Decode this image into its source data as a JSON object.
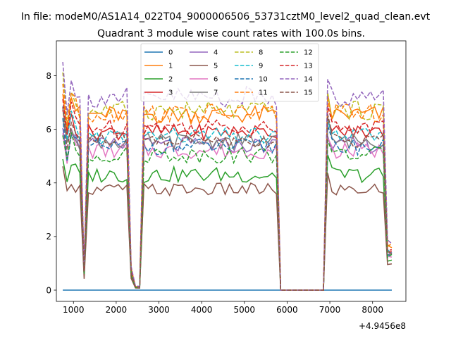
{
  "figure": {
    "suptitle": "In file: modeM0/AS1A14_022T04_9000006506_53731cztM0_level2_quad_clean.evt"
  },
  "chart_data": {
    "type": "line",
    "title": "Quadrant 3 module wise count rates with 100.0s bins.",
    "xlabel": "",
    "ylabel": "",
    "x_offset_label": "+4.9456e8",
    "xlim": [
      600,
      8780
    ],
    "ylim": [
      -0.42,
      9.3
    ],
    "xticks": [
      1000,
      2000,
      3000,
      4000,
      5000,
      6000,
      7000,
      8000
    ],
    "yticks": [
      0,
      2,
      4,
      6,
      8
    ],
    "grid": false,
    "legend": {
      "placement": "top-center",
      "columns": 4
    },
    "x_segments": [
      {
        "start": 750,
        "end": 2450,
        "step": 100
      },
      {
        "start": 2550,
        "end": 5750,
        "step": 100
      },
      {
        "start": 5850,
        "end": 6850,
        "step": 100
      },
      {
        "start": 6950,
        "end": 8450,
        "step": 100
      }
    ],
    "series": [
      {
        "name": "0",
        "color": "#1f77b4",
        "dash": false,
        "level": 0.0,
        "spread": 0.0
      },
      {
        "name": "1",
        "color": "#ff7f0e",
        "dash": false,
        "level": 6.55,
        "spread": 0.35
      },
      {
        "name": "2",
        "color": "#2ca02c",
        "dash": false,
        "level": 4.3,
        "spread": 0.3
      },
      {
        "name": "3",
        "color": "#d62728",
        "dash": false,
        "level": 5.9,
        "spread": 0.3
      },
      {
        "name": "4",
        "color": "#9467bd",
        "dash": false,
        "level": 5.4,
        "spread": 0.3
      },
      {
        "name": "5",
        "color": "#8c564b",
        "dash": false,
        "level": 3.75,
        "spread": 0.25
      },
      {
        "name": "6",
        "color": "#e377c2",
        "dash": false,
        "level": 5.2,
        "spread": 0.3
      },
      {
        "name": "7",
        "color": "#7f7f7f",
        "dash": false,
        "level": 5.55,
        "spread": 0.3
      },
      {
        "name": "8",
        "color": "#bcbd22",
        "dash": true,
        "level": 6.7,
        "spread": 0.35
      },
      {
        "name": "9",
        "color": "#17becf",
        "dash": true,
        "level": 5.75,
        "spread": 0.3
      },
      {
        "name": "10",
        "color": "#1f77b4",
        "dash": true,
        "level": 5.35,
        "spread": 0.3
      },
      {
        "name": "11",
        "color": "#ff7f0e",
        "dash": true,
        "level": 6.6,
        "spread": 0.35
      },
      {
        "name": "12",
        "color": "#2ca02c",
        "dash": true,
        "level": 5.05,
        "spread": 0.3
      },
      {
        "name": "13",
        "color": "#d62728",
        "dash": true,
        "level": 6.1,
        "spread": 0.3
      },
      {
        "name": "14",
        "color": "#9467bd",
        "dash": true,
        "level": 7.2,
        "spread": 0.4
      },
      {
        "name": "15",
        "color": "#8c564b",
        "dash": true,
        "level": 5.6,
        "spread": 0.3
      }
    ]
  }
}
